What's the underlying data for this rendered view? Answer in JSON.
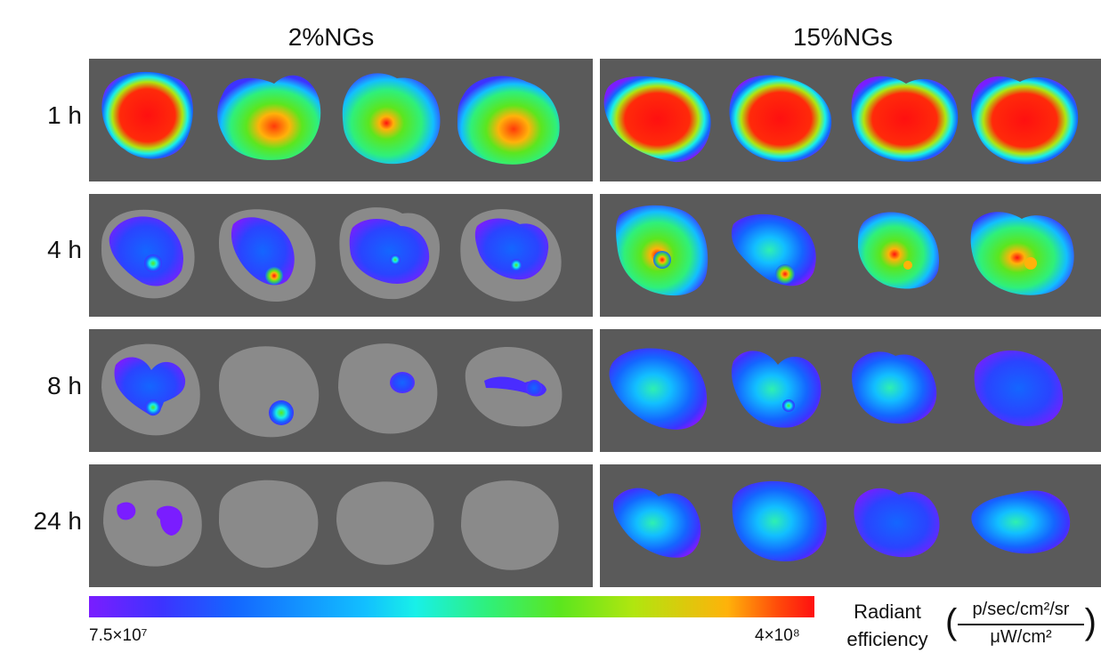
{
  "columns": [
    {
      "title": "2%NGs"
    },
    {
      "title": "15%NGs"
    }
  ],
  "rows": [
    {
      "label": "1 h"
    },
    {
      "label": "4 h"
    },
    {
      "label": "8 h"
    },
    {
      "label": "24 h"
    }
  ],
  "colorbar": {
    "min_label": "7.5×10⁷",
    "max_label": "4×10⁸",
    "title_line1": "Radiant",
    "title_line2": "efficiency",
    "unit_numerator": "p/sec/cm²/sr",
    "unit_denominator": "μW/cm²",
    "colors": [
      "#7a1dff",
      "#1466ff",
      "#18f0e8",
      "#5ce61e",
      "#ff1010"
    ]
  },
  "panel_background_color": "#5a5a5a"
}
